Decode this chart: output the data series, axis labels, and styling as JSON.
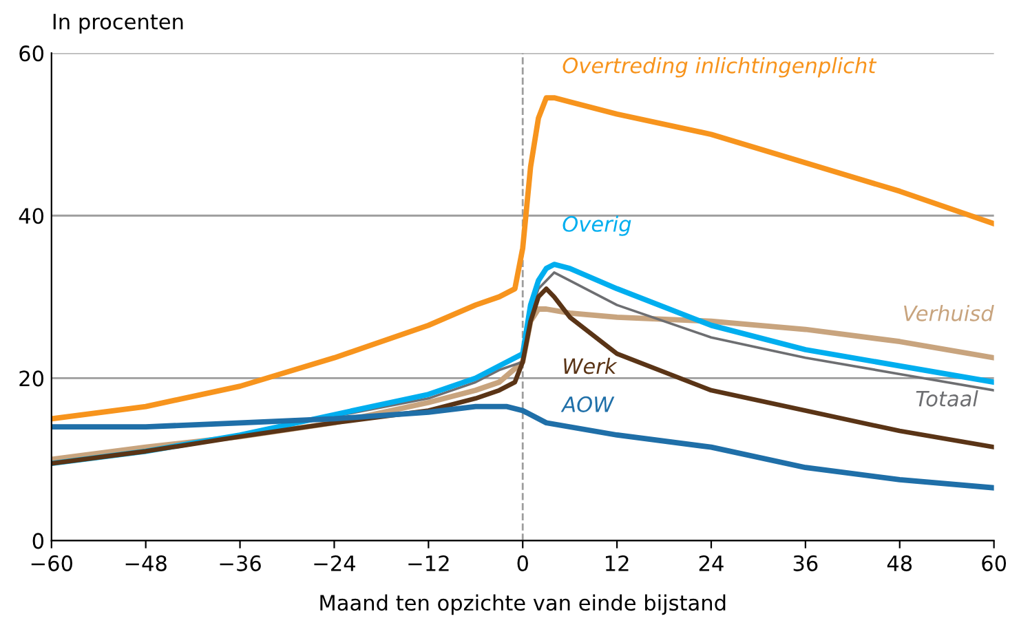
{
  "chart_data": {
    "type": "line",
    "ylabel": "In procenten",
    "xlabel": "Maand ten opzichte van einde bijstand",
    "xlim": [
      -60,
      60
    ],
    "ylim": [
      0,
      60
    ],
    "xticks": [
      {
        "value": -60,
        "label": "−60"
      },
      {
        "value": -48,
        "label": "−48"
      },
      {
        "value": -36,
        "label": "−36"
      },
      {
        "value": -24,
        "label": "−24"
      },
      {
        "value": -12,
        "label": "−12"
      },
      0,
      12,
      24,
      36,
      48,
      60
    ],
    "yticks": [
      0,
      20,
      40,
      60
    ],
    "grid": "y",
    "legend": false,
    "marker": "none",
    "line_style": "solid",
    "ref_lines": [
      {
        "axis": "x",
        "value": 0,
        "color": "#9d9d9d",
        "line_style": "dashed"
      }
    ],
    "series": [
      {
        "name": "Overtreding inlichtingenplicht",
        "color": "#f7941d",
        "x": [
          -60,
          -48,
          -36,
          -24,
          -12,
          -6,
          -3,
          -1,
          0,
          1,
          2,
          3,
          4,
          6,
          12,
          24,
          36,
          48,
          60
        ],
        "values": [
          15,
          16.5,
          19,
          22.5,
          26.5,
          29,
          30,
          31,
          36,
          46,
          52,
          54.5,
          54.5,
          54,
          52.5,
          50,
          46.5,
          43,
          39
        ]
      },
      {
        "name": "Verhuisd",
        "color": "#c8a47e",
        "x": [
          -60,
          -48,
          -36,
          -24,
          -12,
          -6,
          -3,
          0,
          1,
          2,
          3,
          6,
          12,
          24,
          36,
          48,
          60
        ],
        "values": [
          10,
          11.5,
          12.8,
          14.5,
          17,
          18.5,
          19.5,
          22,
          27,
          28.5,
          28.5,
          28,
          27.5,
          27,
          26,
          24.5,
          22.5
        ]
      },
      {
        "name": "Totaal",
        "color": "#6d6e71",
        "x": [
          -60,
          -48,
          -36,
          -24,
          -12,
          -6,
          -3,
          0,
          1,
          2,
          4,
          6,
          12,
          24,
          36,
          48,
          60
        ],
        "values": [
          9.5,
          11,
          13,
          15.3,
          17.5,
          19.5,
          21,
          22,
          28,
          31,
          33,
          32,
          29,
          25,
          22.5,
          20.5,
          18.5
        ]
      },
      {
        "name": "Overig",
        "color": "#00aeef",
        "x": [
          -60,
          -48,
          -36,
          -24,
          -12,
          -6,
          -3,
          0,
          1,
          2,
          3,
          4,
          6,
          12,
          24,
          36,
          48,
          60
        ],
        "values": [
          9.5,
          11,
          13,
          15.5,
          18,
          20,
          21.5,
          23,
          29,
          32,
          33.5,
          34,
          33.5,
          31,
          26.5,
          23.5,
          21.5,
          19.5
        ]
      },
      {
        "name": "Werk",
        "color": "#5a3416",
        "x": [
          -60,
          -48,
          -36,
          -24,
          -12,
          -6,
          -3,
          -1,
          0,
          1,
          2,
          3,
          4,
          6,
          12,
          24,
          36,
          48,
          60
        ],
        "values": [
          9.5,
          11,
          12.8,
          14.5,
          16,
          17.5,
          18.5,
          19.5,
          22,
          27,
          30,
          31,
          30,
          27.5,
          23,
          18.5,
          16,
          13.5,
          11.5
        ]
      },
      {
        "name": "AOW",
        "color": "#1f6fa8",
        "x": [
          -60,
          -48,
          -36,
          -24,
          -12,
          -6,
          -2,
          0,
          3,
          12,
          24,
          36,
          48,
          60
        ],
        "values": [
          14,
          14,
          14.5,
          15,
          15.8,
          16.5,
          16.5,
          16,
          14.5,
          13,
          11.5,
          9,
          7.5,
          6.5
        ]
      }
    ]
  }
}
